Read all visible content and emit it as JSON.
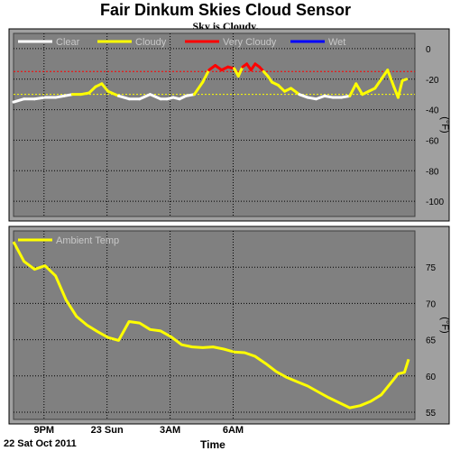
{
  "title": "Fair Dinkum Skies Cloud Sensor",
  "status": "Sky is Cloudy.",
  "date_label": "22 Sat Oct 2011",
  "x_axis_title": "Time",
  "x_ticks": [
    "9PM",
    "23 Sun",
    "3AM",
    "6AM"
  ],
  "chart_data": [
    {
      "type": "line",
      "ylabel": "(°F)",
      "ylim": [
        -110,
        10
      ],
      "yticks": [
        0,
        -20,
        -40,
        -60,
        -80,
        -100
      ],
      "grid": true,
      "legend_position": "top",
      "legend": [
        {
          "name": "Clear",
          "color": "#ffffff"
        },
        {
          "name": "Cloudy",
          "color": "#ffff00"
        },
        {
          "name": "Very Cloudy",
          "color": "#ff0000"
        },
        {
          "name": "Wet",
          "color": "#0000ff"
        }
      ],
      "reference_lines": [
        {
          "y": -15,
          "color": "#ff0000"
        },
        {
          "y": -30,
          "color": "#ffff00"
        }
      ],
      "x_hours": [
        0,
        0.5,
        1,
        1.5,
        2,
        2.4,
        2.8,
        3.2,
        3.6,
        3.9,
        4.2,
        4.5,
        5,
        5.5,
        6,
        6.5,
        7,
        7.3,
        7.6,
        7.9,
        8.2,
        8.6,
        9,
        9.3,
        9.6,
        9.9,
        10.2,
        10.5,
        10.7,
        10.9,
        11.1,
        11.3,
        11.5,
        11.7,
        11.9,
        12.1,
        12.3,
        12.6,
        12.9,
        13.2,
        13.6,
        14,
        14.4,
        14.8,
        15.2,
        15.6,
        16,
        16.3,
        16.6,
        16.9,
        17.2,
        17.5,
        17.8,
        18.1,
        18.3,
        18.5,
        18.7
      ],
      "series": [
        {
          "values": [
            -35,
            -33,
            -33,
            -32,
            -32,
            -31,
            -30,
            -30,
            -29,
            -25,
            -23,
            -28,
            -31,
            -33,
            -33,
            -30,
            -33,
            -33,
            -32,
            -33,
            -31,
            -30,
            -22,
            -14,
            -11,
            -14,
            -12,
            -13,
            -18,
            -12,
            -10,
            -14,
            -10,
            -12,
            -15,
            -18,
            -22,
            -24,
            -28,
            -26,
            -30,
            -32,
            -33,
            -31,
            -32,
            -32,
            -31,
            -23,
            -30,
            -28,
            -26,
            -20,
            -14,
            -25,
            -32,
            -21,
            -20
          ]
        }
      ]
    },
    {
      "type": "line",
      "ylabel": "(°F)",
      "ylim": [
        54,
        80
      ],
      "yticks": [
        75,
        70,
        65,
        60,
        55
      ],
      "grid": true,
      "legend_position": "top-left",
      "x_hours": [
        0,
        0.5,
        1,
        1.5,
        2,
        2.5,
        3,
        3.5,
        4,
        4.5,
        5,
        5.5,
        6,
        6.5,
        7,
        7.5,
        8,
        8.5,
        9,
        9.5,
        10,
        10.5,
        11,
        11.5,
        12,
        12.5,
        13,
        13.5,
        14,
        14.5,
        15,
        15.5,
        16,
        16.5,
        17,
        17.5,
        18,
        18.3,
        18.6,
        18.8
      ],
      "series": [
        {
          "name": "Ambient Temp",
          "color": "#ffff00",
          "values": [
            78.5,
            75.8,
            74.7,
            75.2,
            73.8,
            70.5,
            68.2,
            67,
            66.1,
            65.3,
            64.9,
            67.5,
            67.3,
            66.4,
            66.2,
            65.4,
            64.3,
            64,
            63.9,
            64,
            63.7,
            63.3,
            63.2,
            62.7,
            61.7,
            60.6,
            59.8,
            59.2,
            58.6,
            57.8,
            57,
            56.3,
            55.6,
            55.9,
            56.5,
            57.4,
            59.2,
            60.3,
            60.5,
            62.3
          ]
        }
      ]
    }
  ]
}
